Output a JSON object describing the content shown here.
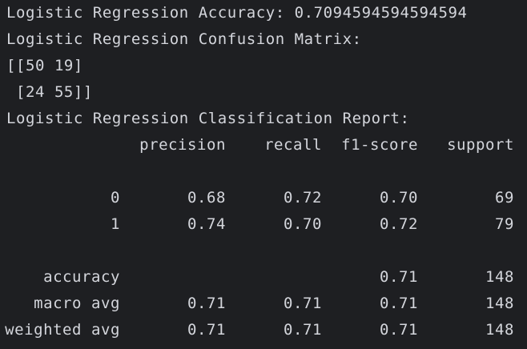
{
  "output": {
    "accuracy_line": "Logistic Regression Accuracy: 0.7094594594594594",
    "confusion_title": "Logistic Regression Confusion Matrix:",
    "matrix_row_1": "[[50 19]",
    "matrix_row_2": " [24 55]]",
    "report_title": "Logistic Regression Classification Report:",
    "report": {
      "headers": [
        "precision",
        "recall",
        "f1-score",
        "support"
      ],
      "rows": [
        {
          "label": "0",
          "precision": "0.68",
          "recall": "0.72",
          "f1": "0.70",
          "support": "69"
        },
        {
          "label": "1",
          "precision": "0.74",
          "recall": "0.70",
          "f1": "0.72",
          "support": "79"
        }
      ],
      "summary": [
        {
          "label": "accuracy",
          "precision": "",
          "recall": "",
          "f1": "0.71",
          "support": "148"
        },
        {
          "label": "macro avg",
          "precision": "0.71",
          "recall": "0.71",
          "f1": "0.71",
          "support": "148"
        },
        {
          "label": "weighted avg",
          "precision": "0.71",
          "recall": "0.71",
          "f1": "0.71",
          "support": "148"
        }
      ]
    }
  },
  "colors": {
    "background": "#1e1f22",
    "text": "#d4d6dc"
  }
}
